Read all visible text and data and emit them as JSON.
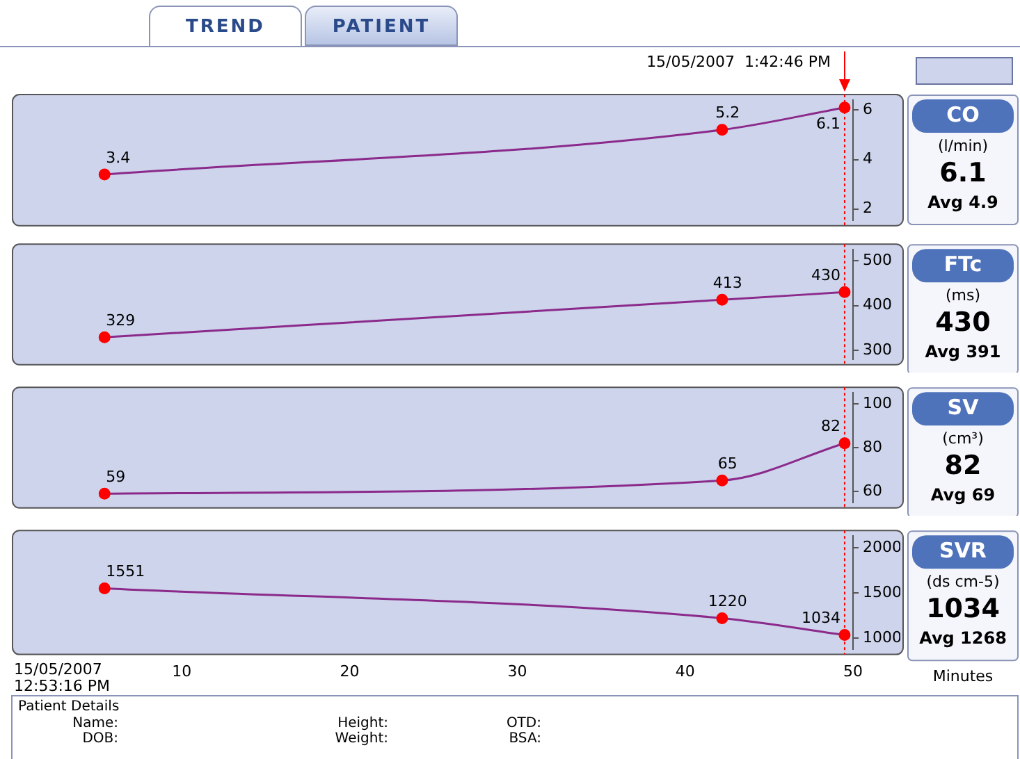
{
  "chart_data": [
    {
      "type": "line",
      "annotations": [
        "CO",
        "(l/min)",
        "6.1",
        "Avg 4.9",
        "15/05/2007  1:42:46 PM",
        "TREND",
        "PATIENT"
      ],
      "x": [
        5.4,
        42.2,
        49.5
      ],
      "series": [
        {
          "color": "#8b2a8b",
          "colors": [
            "#ff0000",
            "#ff0000",
            "#ff0000"
          ],
          "values": [
            3.4,
            5.2,
            6.1
          ]
        }
      ],
      "xlim": [
        0,
        50
      ],
      "xticks": [
        10,
        20,
        30,
        40,
        50
      ],
      "ylim": [
        1.55,
        6.4
      ],
      "yticks": [
        2,
        4,
        6
      ],
      "tick_labels": "y",
      "marker": "circle",
      "data_labels": true,
      "ref_lines": [
        {
          "axis": "x",
          "value": 49.5,
          "color": "#ff0000",
          "line_style": "dotted"
        }
      ]
    },
    {
      "type": "line",
      "annotations": [
        "FTc",
        "(ms)",
        "430",
        "Avg 391"
      ],
      "x": [
        5.4,
        42.2,
        49.5
      ],
      "series": [
        {
          "color": "#8b2a8b",
          "colors": [
            "#ff0000",
            "#ff0000",
            "#ff0000"
          ],
          "values": [
            329,
            413,
            430
          ]
        }
      ],
      "xlim": [
        0,
        50
      ],
      "xticks": [
        10,
        20,
        30,
        40,
        50
      ],
      "ylim": [
        280,
        525
      ],
      "yticks": [
        300,
        400,
        500
      ],
      "tick_labels": "y",
      "marker": "circle",
      "data_labels": true,
      "ref_lines": [
        {
          "axis": "x",
          "value": 49.5,
          "color": "#ff0000",
          "line_style": "dotted"
        }
      ]
    },
    {
      "type": "line",
      "annotations": [
        "SV",
        "(cm³)",
        "82",
        "Avg 69"
      ],
      "x": [
        5.4,
        42.2,
        49.5
      ],
      "series": [
        {
          "color": "#8b2a8b",
          "colors": [
            "#ff0000",
            "#ff0000",
            "#ff0000"
          ],
          "values": [
            59,
            65,
            82
          ]
        }
      ],
      "xlim": [
        0,
        50
      ],
      "xticks": [
        10,
        20,
        30,
        40,
        50
      ],
      "ylim": [
        55,
        105
      ],
      "yticks": [
        60,
        80,
        100
      ],
      "tick_labels": "y",
      "marker": "circle",
      "data_labels": true,
      "ref_lines": [
        {
          "axis": "x",
          "value": 49.5,
          "color": "#ff0000",
          "line_style": "dotted"
        }
      ]
    },
    {
      "type": "line",
      "xlabel": "Minutes",
      "annotations": [
        "SVR",
        "(ds cm-5)",
        "1034",
        "Avg 1268",
        "15/05/2007 12:53:16 PM",
        "Patient Details",
        "Name:",
        "DOB:",
        "Height:",
        "Weight:",
        "OTD:",
        "BSA:"
      ],
      "x": [
        5.4,
        42.2,
        49.5
      ],
      "series": [
        {
          "color": "#8b2a8b",
          "colors": [
            "#ff0000",
            "#ff0000",
            "#ff0000"
          ],
          "values": [
            1551,
            1220,
            1034
          ]
        }
      ],
      "xlim": [
        0,
        50
      ],
      "xticks": [
        10,
        20,
        30,
        40,
        50
      ],
      "ylim": [
        880,
        2130
      ],
      "yticks": [
        1000,
        1500,
        2000
      ],
      "marker": "circle",
      "data_labels": true,
      "ref_lines": [
        {
          "axis": "x",
          "value": 49.5,
          "color": "#ff0000",
          "line_style": "dotted"
        }
      ]
    }
  ]
}
